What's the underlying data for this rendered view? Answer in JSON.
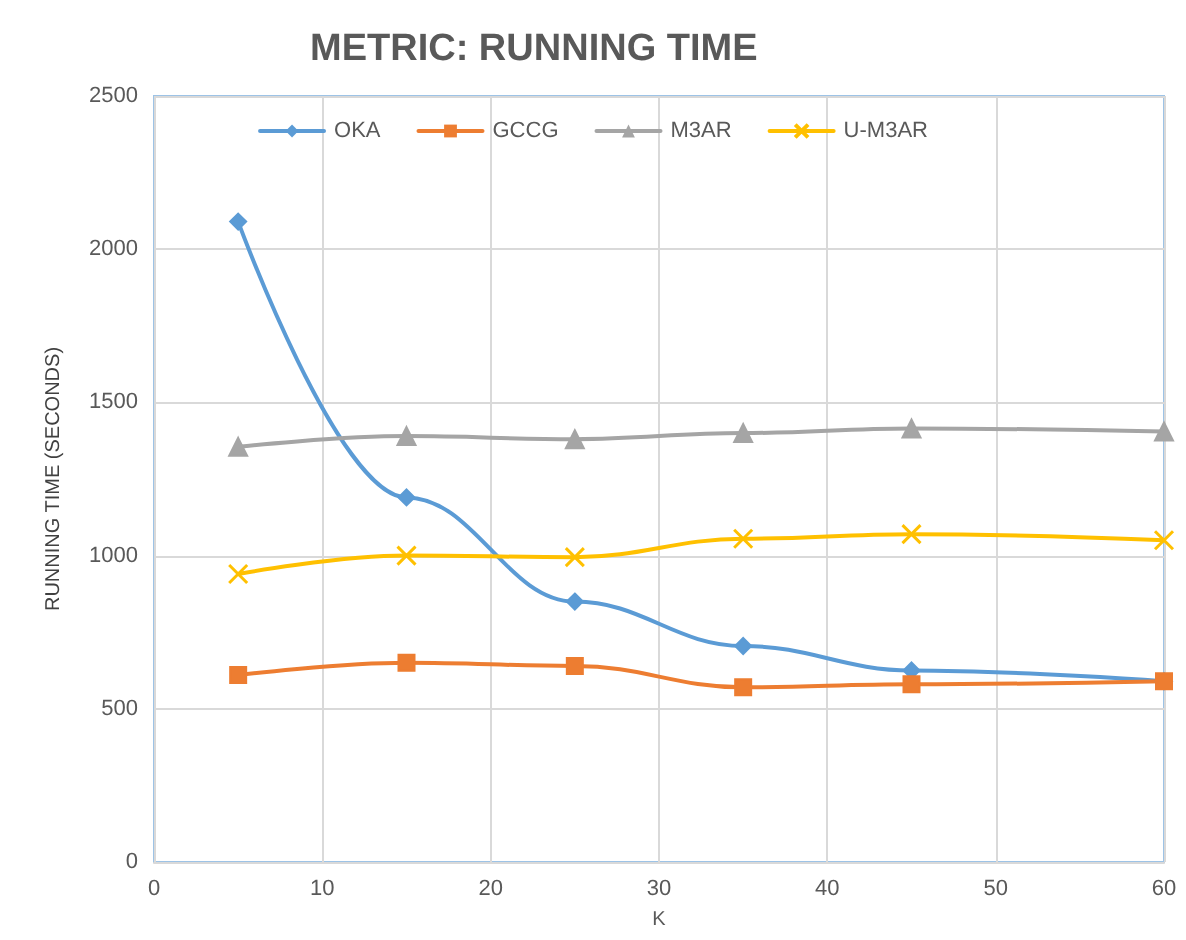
{
  "chart_data": {
    "type": "line",
    "title": "METRIC: RUNNING TIME",
    "xlabel": "K",
    "ylabel": "RUNNING TIME (SECONDS)",
    "x": [
      5,
      15,
      25,
      35,
      45,
      60
    ],
    "series": [
      {
        "name": "OKA",
        "color": "#5b9bd5",
        "marker": "diamond",
        "values": [
          2090,
          1190,
          850,
          705,
          625,
          590
        ]
      },
      {
        "name": "GCCG",
        "color": "#ed7d31",
        "marker": "square",
        "values": [
          610,
          650,
          640,
          570,
          580,
          590
        ]
      },
      {
        "name": "M3AR",
        "color": "#a5a5a5",
        "marker": "triangle",
        "values": [
          1355,
          1390,
          1380,
          1400,
          1415,
          1405
        ]
      },
      {
        "name": "U-M3AR",
        "color": "#ffc000",
        "marker": "cross",
        "values": [
          940,
          1000,
          995,
          1055,
          1070,
          1050
        ]
      }
    ],
    "xlim": [
      0,
      60
    ],
    "xticks": [
      0,
      10,
      20,
      30,
      40,
      50,
      60
    ],
    "ylim": [
      0,
      2500
    ],
    "yticks": [
      0,
      500,
      1000,
      1500,
      2000,
      2500
    ],
    "grid": true,
    "legend": "top",
    "line_style": "solid"
  }
}
